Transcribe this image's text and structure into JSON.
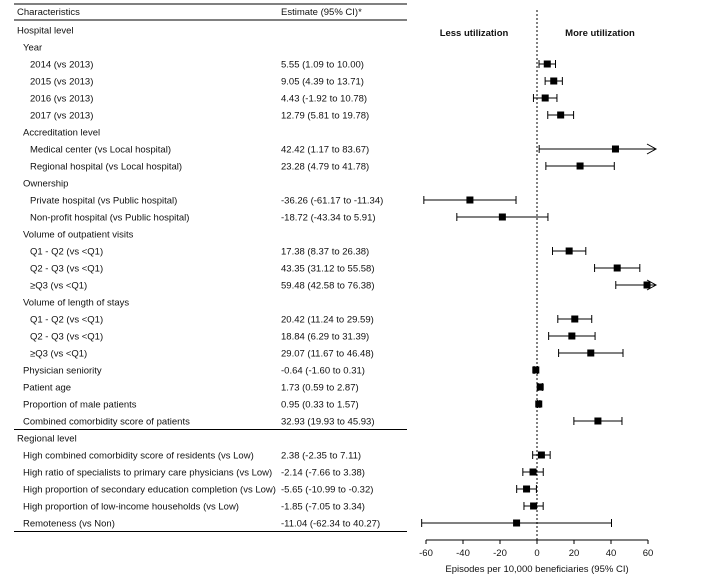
{
  "chart_data": {
    "type": "forest",
    "title": "",
    "columns": {
      "characteristics": "Characteristics",
      "estimate": "Estimate (95% CI)*"
    },
    "annotations": {
      "left": "Less utilization",
      "right": "More utilization"
    },
    "xlabel": "Episodes per 10,000 beneficiaries (95% CI)",
    "xlim": [
      -60,
      60
    ],
    "xticks": [
      "-60",
      "-40",
      "-20",
      "0",
      "20",
      "40",
      "60"
    ],
    "reference_line": 0,
    "rows": [
      {
        "kind": "section",
        "label": "Hospital level"
      },
      {
        "kind": "group",
        "label": "Year"
      },
      {
        "kind": "item",
        "label": "2014 (vs 2013)",
        "estimate_text": "5.55 (1.09 to 10.00)",
        "est": 5.55,
        "lo": 1.09,
        "hi": 10.0
      },
      {
        "kind": "item",
        "label": "2015 (vs 2013)",
        "estimate_text": "9.05 (4.39 to 13.71)",
        "est": 9.05,
        "lo": 4.39,
        "hi": 13.71
      },
      {
        "kind": "item",
        "label": "2016 (vs 2013)",
        "estimate_text": "4.43 (-1.92 to 10.78)",
        "est": 4.43,
        "lo": -1.92,
        "hi": 10.78
      },
      {
        "kind": "item",
        "label": "2017 (vs 2013)",
        "estimate_text": "12.79 (5.81 to 19.78)",
        "est": 12.79,
        "lo": 5.81,
        "hi": 19.78
      },
      {
        "kind": "group",
        "label": "Accreditation level"
      },
      {
        "kind": "item",
        "label": "Medical center (vs Local hospital)",
        "estimate_text": "42.42 (1.17 to 83.67)",
        "est": 42.42,
        "lo": 1.17,
        "hi": 83.67
      },
      {
        "kind": "item",
        "label": "Regional hospital (vs Local hospital)",
        "estimate_text": "23.28 (4.79 to 41.78)",
        "est": 23.28,
        "lo": 4.79,
        "hi": 41.78
      },
      {
        "kind": "group",
        "label": "Ownership"
      },
      {
        "kind": "item",
        "label": "Private hospital (vs Public hospital)",
        "estimate_text": "-36.26 (-61.17 to -11.34)",
        "est": -36.26,
        "lo": -61.17,
        "hi": -11.34
      },
      {
        "kind": "item",
        "label": "Non-profit hospital (vs Public hospital)",
        "estimate_text": "-18.72 (-43.34 to 5.91)",
        "est": -18.72,
        "lo": -43.34,
        "hi": 5.91
      },
      {
        "kind": "group",
        "label": "Volume of outpatient visits"
      },
      {
        "kind": "item",
        "label": "Q1 - Q2 (vs <Q1)",
        "estimate_text": "17.38 (8.37 to 26.38)",
        "est": 17.38,
        "lo": 8.37,
        "hi": 26.38
      },
      {
        "kind": "item",
        "label": "Q2 - Q3 (vs <Q1)",
        "estimate_text": "43.35 (31.12 to 55.58)",
        "est": 43.35,
        "lo": 31.12,
        "hi": 55.58
      },
      {
        "kind": "item",
        "label": "≥Q3  (vs <Q1)",
        "estimate_text": "59.48 (42.58 to 76.38)",
        "est": 59.48,
        "lo": 42.58,
        "hi": 76.38
      },
      {
        "kind": "group",
        "label": "Volume of length of stays"
      },
      {
        "kind": "item",
        "label": "Q1 - Q2 (vs <Q1)",
        "estimate_text": "20.42 (11.24 to 29.59)",
        "est": 20.42,
        "lo": 11.24,
        "hi": 29.59
      },
      {
        "kind": "item",
        "label": "Q2 - Q3 (vs <Q1)",
        "estimate_text": "18.84 (6.29 to 31.39)",
        "est": 18.84,
        "lo": 6.29,
        "hi": 31.39
      },
      {
        "kind": "item",
        "label": "≥Q3  (vs <Q1)",
        "estimate_text": "29.07 (11.67 to 46.48)",
        "est": 29.07,
        "lo": 11.67,
        "hi": 46.48
      },
      {
        "kind": "group",
        "label": "Physician seniority",
        "estimate_text": "-0.64 (-1.60 to 0.31)",
        "est": -0.64,
        "lo": -1.6,
        "hi": 0.31
      },
      {
        "kind": "group",
        "label": "Patient age",
        "estimate_text": "1.73 (0.59 to 2.87)",
        "est": 1.73,
        "lo": 0.59,
        "hi": 2.87
      },
      {
        "kind": "group",
        "label": "Proportion of male patients",
        "estimate_text": "0.95 (0.33 to 1.57)",
        "est": 0.95,
        "lo": 0.33,
        "hi": 1.57
      },
      {
        "kind": "group",
        "label": "Combined comorbidity score of patients",
        "estimate_text": "32.93 (19.93 to 45.93)",
        "est": 32.93,
        "lo": 19.93,
        "hi": 45.93
      },
      {
        "kind": "section",
        "label": "Regional level"
      },
      {
        "kind": "group",
        "label": "High combined comorbidity score of residents  (vs Low)",
        "estimate_text": "2.38 (-2.35 to 7.11)",
        "est": 2.38,
        "lo": -2.35,
        "hi": 7.11
      },
      {
        "kind": "group",
        "label": "High ratio of specialists to primary care physicians (vs Low)",
        "estimate_text": "-2.14 (-7.66 to 3.38)",
        "est": -2.14,
        "lo": -7.66,
        "hi": 3.38
      },
      {
        "kind": "group",
        "label": "High proportion of secondary education completion  (vs Low)",
        "estimate_text": "-5.65 (-10.99 to -0.32)",
        "est": -5.65,
        "lo": -10.99,
        "hi": -0.32
      },
      {
        "kind": "group",
        "label": "High proportion of low-income households  (vs Low)",
        "estimate_text": "-1.85 (-7.05 to 3.34)",
        "est": -1.85,
        "lo": -7.05,
        "hi": 3.34
      },
      {
        "kind": "group",
        "label": "Remoteness  (vs Non)",
        "estimate_text": "-11.04 (-62.34 to 40.27)",
        "est": -11.04,
        "lo": -62.34,
        "hi": 40.27
      }
    ]
  }
}
